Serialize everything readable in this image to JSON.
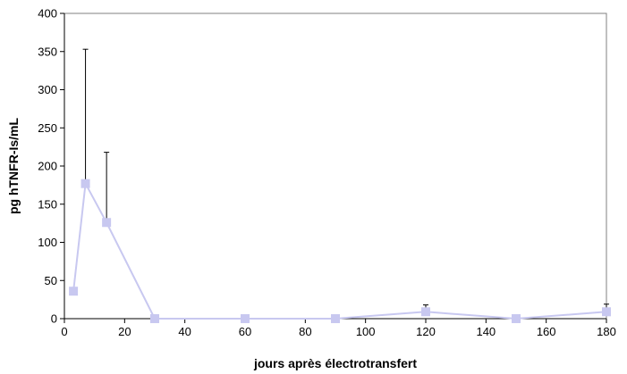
{
  "chart_data": {
    "type": "line",
    "title": "",
    "xlabel": "jours après électrotransfert",
    "ylabel": "pg hTNFR-Is/mL",
    "xlim": [
      0,
      180
    ],
    "ylim": [
      0,
      400
    ],
    "xticks": [
      0,
      20,
      40,
      60,
      80,
      100,
      120,
      140,
      160,
      180
    ],
    "yticks": [
      0,
      50,
      100,
      150,
      200,
      250,
      300,
      350,
      400
    ],
    "grid": false,
    "legend": "none",
    "series": [
      {
        "color": "#c8c8f0",
        "marker": "square",
        "x": [
          3,
          7,
          14,
          30,
          60,
          90,
          120,
          150,
          180
        ],
        "y": [
          36,
          177,
          126,
          0,
          0,
          0,
          9,
          0,
          9
        ],
        "error_upper": [
          4,
          176,
          92,
          0,
          0,
          0,
          9,
          0,
          10
        ]
      }
    ]
  }
}
